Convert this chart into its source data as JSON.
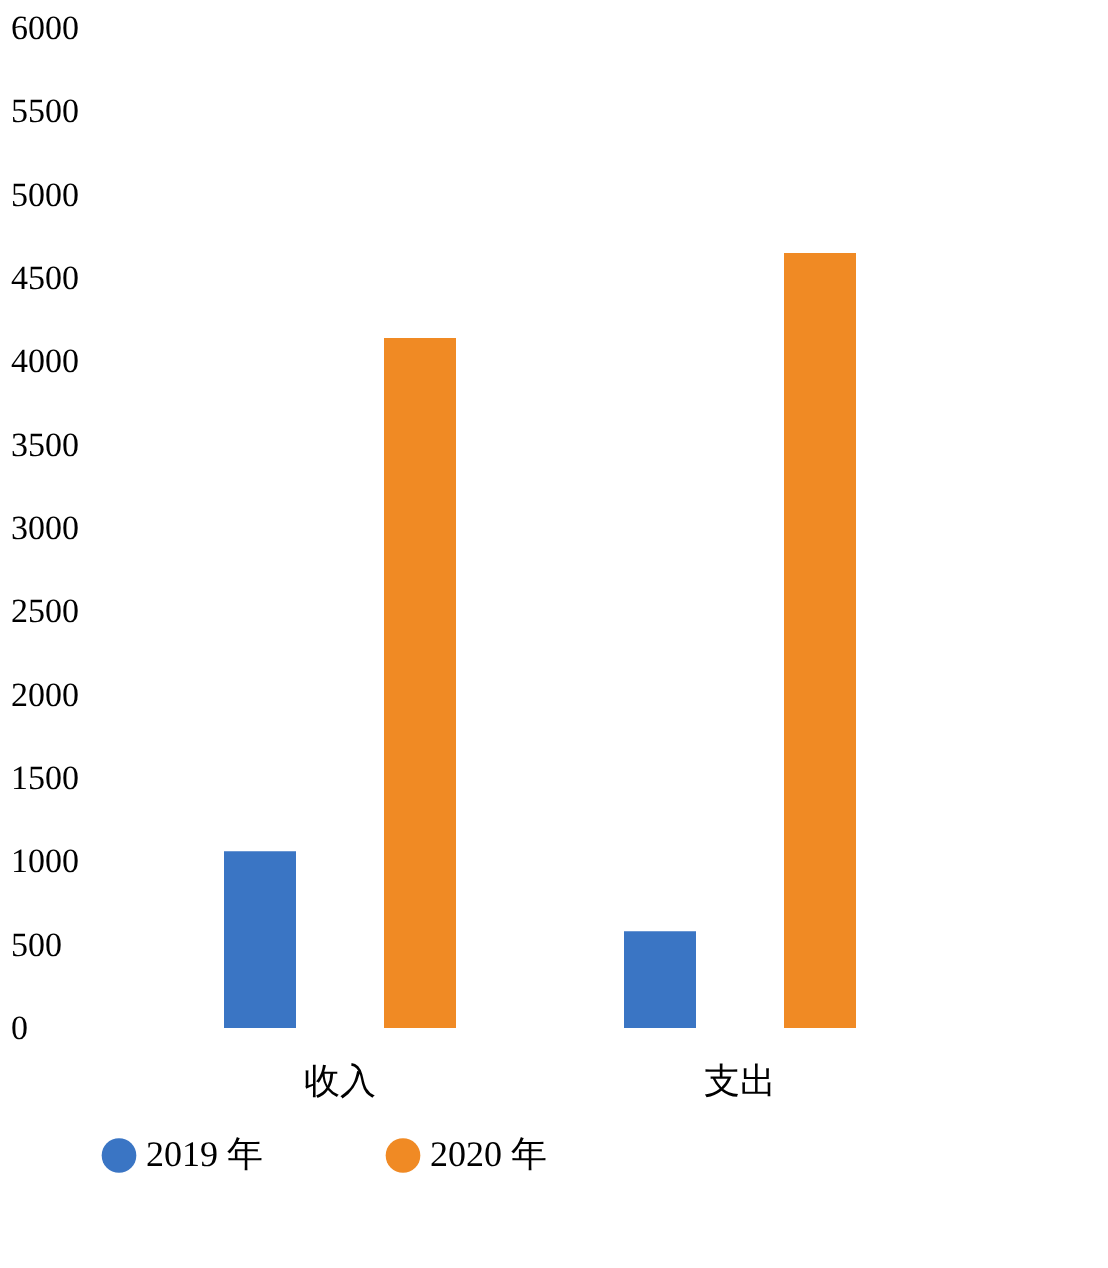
{
  "chart_data": {
    "type": "bar",
    "categories": [
      "收入",
      "支出"
    ],
    "series": [
      {
        "name": "2019 年",
        "color": "#3a75c4",
        "values": [
          1060,
          580
        ]
      },
      {
        "name": "2020 年",
        "color": "#f08a24",
        "values": [
          4140,
          4650
        ]
      }
    ],
    "ylim": [
      0,
      6000
    ],
    "yticks": [
      0,
      500,
      1000,
      1500,
      2000,
      2500,
      3000,
      3500,
      4000,
      4500,
      5000,
      5500,
      6000
    ],
    "grid": false,
    "legend": "bottom"
  }
}
